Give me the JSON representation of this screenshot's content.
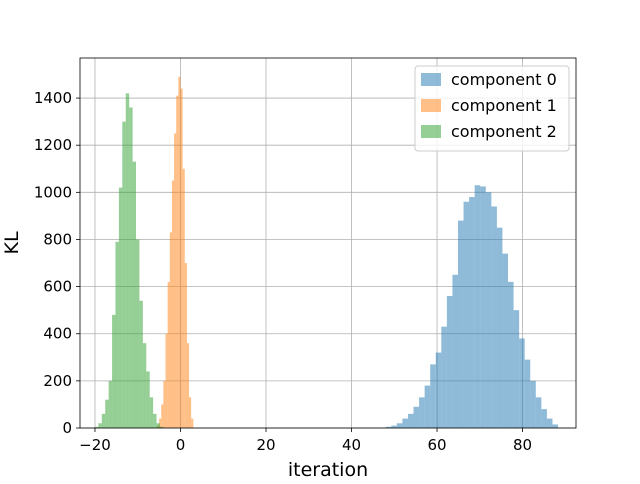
{
  "chart_data": {
    "type": "bar",
    "title": "",
    "xlabel": "iteration",
    "ylabel": "KL",
    "xlim": [
      -23.5,
      92.5
    ],
    "ylim": [
      0,
      1570
    ],
    "x_ticks": [
      -20,
      0,
      20,
      40,
      60,
      80
    ],
    "y_ticks": [
      0,
      200,
      400,
      600,
      800,
      1000,
      1200,
      1400
    ],
    "grid": true,
    "legend_position": "top-right",
    "series": [
      {
        "name": "component 0",
        "color": "#1f77b4",
        "alpha": 0.5,
        "bins": [
          [
            48.0,
            49.3,
            5
          ],
          [
            49.3,
            50.6,
            10
          ],
          [
            50.6,
            51.9,
            20
          ],
          [
            51.9,
            53.2,
            40
          ],
          [
            53.2,
            54.5,
            60
          ],
          [
            54.5,
            55.8,
            90
          ],
          [
            55.8,
            57.1,
            130
          ],
          [
            57.1,
            58.4,
            180
          ],
          [
            58.4,
            59.7,
            270
          ],
          [
            59.7,
            61.0,
            320
          ],
          [
            61.0,
            62.3,
            430
          ],
          [
            62.3,
            63.6,
            560
          ],
          [
            63.6,
            64.9,
            650
          ],
          [
            64.9,
            66.2,
            880
          ],
          [
            66.2,
            67.5,
            960
          ],
          [
            67.5,
            68.8,
            980
          ],
          [
            68.8,
            70.1,
            1030
          ],
          [
            70.1,
            71.4,
            1025
          ],
          [
            71.4,
            72.7,
            1000
          ],
          [
            72.7,
            74.0,
            940
          ],
          [
            74.0,
            75.3,
            850
          ],
          [
            75.3,
            76.6,
            740
          ],
          [
            76.6,
            77.9,
            620
          ],
          [
            77.9,
            79.2,
            500
          ],
          [
            79.2,
            80.5,
            380
          ],
          [
            80.5,
            81.8,
            290
          ],
          [
            81.8,
            83.1,
            200
          ],
          [
            83.1,
            84.4,
            130
          ],
          [
            84.4,
            85.7,
            80
          ],
          [
            85.7,
            87.0,
            40
          ],
          [
            87.0,
            88.3,
            15
          ]
        ]
      },
      {
        "name": "component 1",
        "color": "#ff7f0e",
        "alpha": 0.5,
        "bins": [
          [
            -5.5,
            -5.0,
            10
          ],
          [
            -5.0,
            -4.5,
            40
          ],
          [
            -4.5,
            -4.0,
            100
          ],
          [
            -4.0,
            -3.5,
            200
          ],
          [
            -3.5,
            -3.0,
            400
          ],
          [
            -3.0,
            -2.5,
            620
          ],
          [
            -2.5,
            -2.0,
            830
          ],
          [
            -2.0,
            -1.5,
            1050
          ],
          [
            -1.5,
            -1.0,
            1250
          ],
          [
            -1.0,
            -0.5,
            1410
          ],
          [
            -0.5,
            0.0,
            1490
          ],
          [
            0.0,
            0.5,
            1440
          ],
          [
            0.5,
            1.0,
            1100
          ],
          [
            1.0,
            1.5,
            700
          ],
          [
            1.5,
            2.0,
            360
          ],
          [
            2.0,
            2.5,
            130
          ],
          [
            2.5,
            3.0,
            40
          ]
        ]
      },
      {
        "name": "component 2",
        "color": "#2ca02c",
        "alpha": 0.5,
        "bins": [
          [
            -20.0,
            -19.2,
            5
          ],
          [
            -19.2,
            -18.4,
            20
          ],
          [
            -18.4,
            -17.6,
            60
          ],
          [
            -17.6,
            -16.8,
            120
          ],
          [
            -16.8,
            -16.0,
            200
          ],
          [
            -16.0,
            -15.2,
            480
          ],
          [
            -15.2,
            -14.4,
            790
          ],
          [
            -14.4,
            -13.6,
            1020
          ],
          [
            -13.6,
            -12.8,
            1300
          ],
          [
            -12.8,
            -12.0,
            1420
          ],
          [
            -12.0,
            -11.2,
            1360
          ],
          [
            -11.2,
            -10.4,
            1130
          ],
          [
            -10.4,
            -9.6,
            800
          ],
          [
            -9.6,
            -8.8,
            540
          ],
          [
            -8.8,
            -8.0,
            360
          ],
          [
            -8.0,
            -7.2,
            240
          ],
          [
            -7.2,
            -6.4,
            130
          ],
          [
            -6.4,
            -5.6,
            60
          ],
          [
            -5.6,
            -4.8,
            20
          ],
          [
            -4.8,
            -4.0,
            5
          ]
        ]
      }
    ]
  }
}
